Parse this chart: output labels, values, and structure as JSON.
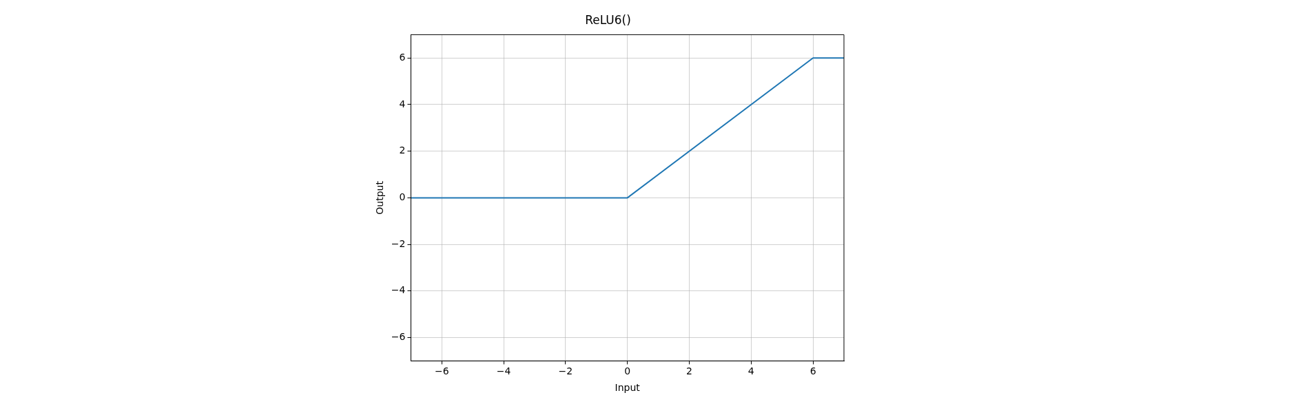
{
  "chart_data": {
    "type": "line",
    "title": "ReLU6()",
    "xlabel": "Input",
    "ylabel": "Output",
    "x": [
      -7,
      0,
      6,
      7
    ],
    "series": [
      {
        "color": "#1f77b4",
        "values": [
          0,
          0,
          6,
          6
        ]
      }
    ],
    "xlim": [
      -7,
      7
    ],
    "xticks": [
      -6,
      -4,
      -2,
      0,
      2,
      4,
      6
    ],
    "ylim": [
      -7,
      7
    ],
    "yticks": [
      -6,
      -4,
      -2,
      0,
      2,
      4,
      6
    ],
    "grid": true,
    "marker": "none",
    "line_style": "solid"
  }
}
